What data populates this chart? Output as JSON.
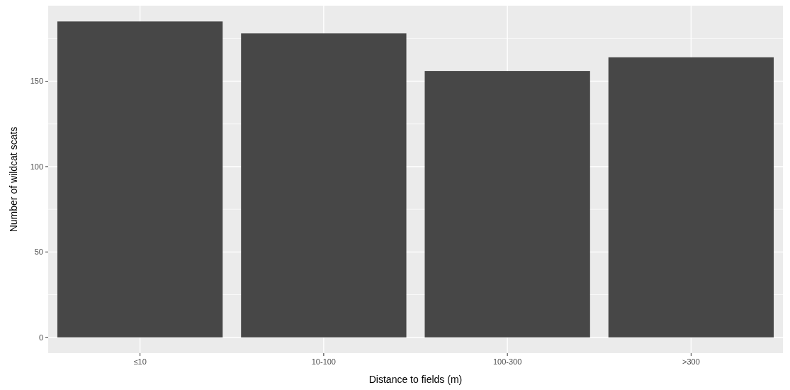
{
  "chart_data": {
    "type": "bar",
    "xlabel": "Distance to fields (m)",
    "ylabel": "Number of wildcat scats",
    "categories": [
      "≤10",
      "10-100",
      "100-300",
      ">300"
    ],
    "values": [
      185,
      178,
      156,
      164
    ],
    "color": "#474747",
    "ylim": [
      -9.25,
      194.25
    ],
    "yticks": [
      0,
      50,
      100,
      150
    ],
    "grid": true
  }
}
